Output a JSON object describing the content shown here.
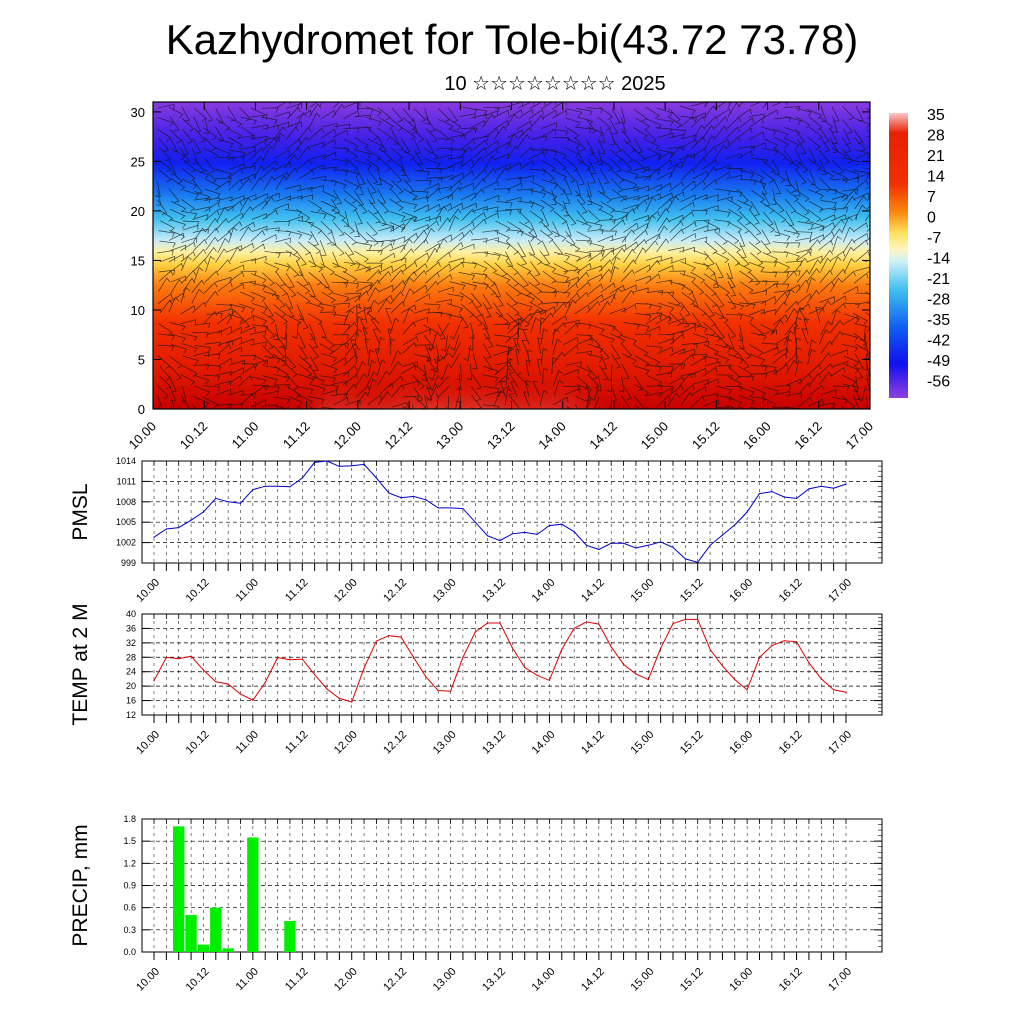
{
  "title": "Kazhydromet for Tole-bi(43.72 73.78)",
  "subtitle": "10 ☆☆☆☆☆☆☆☆ 2025",
  "time_labels": [
    "10.00",
    "10.12",
    "11.00",
    "11.12",
    "12.00",
    "12.12",
    "13.00",
    "13.12",
    "14.00",
    "14.12",
    "15.00",
    "15.12",
    "16.00",
    "16.12",
    "17.00"
  ],
  "chart_data": [
    {
      "type": "heatmap",
      "title": "",
      "xlabel": "",
      "ylabel": "",
      "x": [
        "10.00",
        "10.12",
        "11.00",
        "11.12",
        "12.00",
        "12.12",
        "13.00",
        "13.12",
        "14.00",
        "14.12",
        "15.00",
        "15.12",
        "16.00",
        "16.12",
        "17.00"
      ],
      "yticks": [
        0,
        5,
        10,
        15,
        20,
        25,
        30
      ],
      "ylim": [
        0,
        31
      ],
      "colorbar_labels": [
        "35",
        "28",
        "21",
        "14",
        "7",
        "0",
        "-7",
        "-14",
        "-21",
        "-28",
        "-35",
        "-42",
        "-49",
        "-56"
      ],
      "overlay": "wind barbs",
      "colors": {
        "warm": "#e82000",
        "hot": "#f8c0c0",
        "mid": "#ffe060",
        "cool": "#40c0f0",
        "cold": "#3040f0",
        "coldest": "#8a2be2"
      }
    },
    {
      "type": "line",
      "ylabel": "PMSL",
      "ylim": [
        999,
        1014
      ],
      "yticks": [
        999,
        1002,
        1005,
        1008,
        1011,
        1014
      ],
      "color": "#0000cc",
      "values": [
        1002.8,
        1004.0,
        1004.2,
        1005.3,
        1006.5,
        1008.5,
        1008.0,
        1007.8,
        1009.8,
        1010.3,
        1010.3,
        1010.2,
        1011.5,
        1013.8,
        1014.0,
        1013.2,
        1013.3,
        1013.5,
        1011.5,
        1009.3,
        1008.6,
        1008.8,
        1008.3,
        1007.1,
        1007.1,
        1007.0,
        1005.0,
        1003.0,
        1002.3,
        1003.3,
        1003.5,
        1003.2,
        1004.5,
        1004.7,
        1003.6,
        1001.6,
        1001.0,
        1001.9,
        1001.9,
        1001.2,
        1001.6,
        1002.1,
        1001.3,
        999.6,
        999.1,
        1001.6,
        1003.1,
        1004.6,
        1006.5,
        1009.2,
        1009.5,
        1008.7,
        1008.5,
        1009.9,
        1010.3,
        1010.0,
        1010.6
      ]
    },
    {
      "type": "line",
      "ylabel": "TEMP at 2 M",
      "ylim": [
        12,
        40
      ],
      "yticks": [
        12,
        16,
        20,
        24,
        28,
        32,
        36,
        40
      ],
      "color": "#dd0000",
      "values": [
        21.5,
        28.0,
        27.6,
        28.3,
        24.5,
        21.2,
        20.6,
        17.8,
        16.1,
        21.0,
        27.9,
        27.3,
        27.5,
        23.2,
        19.2,
        16.6,
        15.6,
        25.0,
        32.5,
        34.0,
        33.6,
        28.0,
        22.6,
        18.8,
        18.6,
        28.0,
        35.0,
        37.5,
        37.5,
        30.6,
        25.2,
        23.0,
        21.6,
        30.2,
        36.0,
        37.8,
        37.2,
        30.9,
        26.0,
        23.4,
        21.8,
        30.5,
        37.3,
        38.5,
        38.5,
        30.2,
        25.6,
        21.8,
        19.0,
        28.0,
        31.2,
        32.6,
        32.3,
        26.5,
        22.0,
        19.0,
        18.3
      ]
    },
    {
      "type": "bar",
      "ylabel": "PRECIP, mm",
      "ylim": [
        0,
        1.8
      ],
      "yticks": [
        "0.0",
        "0.3",
        "0.6",
        "0.9",
        "1.2",
        "1.5",
        "1.8"
      ],
      "color": "#00ee00",
      "values": [
        0,
        0,
        1.7,
        0.5,
        0.1,
        0.6,
        0.05,
        0,
        1.55,
        0,
        0,
        0.42,
        0,
        0,
        0,
        0,
        0,
        0,
        0,
        0,
        0,
        0,
        0,
        0,
        0,
        0,
        0,
        0,
        0,
        0,
        0,
        0,
        0,
        0,
        0,
        0,
        0,
        0,
        0,
        0,
        0,
        0,
        0,
        0,
        0,
        0,
        0,
        0,
        0,
        0,
        0,
        0,
        0,
        0,
        0,
        0,
        0
      ]
    }
  ]
}
